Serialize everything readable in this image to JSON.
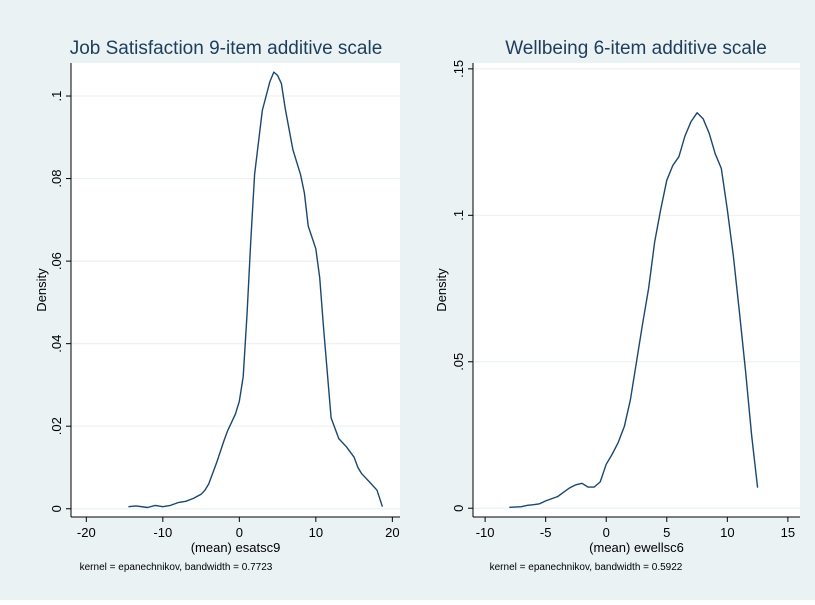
{
  "colors": {
    "outer_background": "#eaf2f3",
    "plot_background": "#ffffff",
    "grid": "#eaf2f3",
    "line": "#1a476f",
    "text": "#000000",
    "title": "#1e3d5c"
  },
  "chart_data": [
    {
      "type": "line",
      "title": "Job Satisfaction 9-item additive scale",
      "xlabel": "(mean) esatsc9",
      "ylabel": "Density",
      "note": "kernel = epanechnikov, bandwidth = 0.7723",
      "xlim": [
        -22,
        21
      ],
      "ylim": [
        -0.002,
        0.108
      ],
      "xticks": [
        -20,
        -10,
        0,
        10,
        20
      ],
      "xtick_labels": [
        "-20",
        "-10",
        "0",
        "10",
        "20"
      ],
      "yticks": [
        0,
        0.02,
        0.04,
        0.06,
        0.08,
        0.1
      ],
      "ytick_labels": [
        "0",
        ".02",
        ".04",
        ".06",
        ".08",
        ".1"
      ],
      "grid": true,
      "series": [
        {
          "x": [
            -14.5,
            -13.5,
            -12.0,
            -11.0,
            -10.0,
            -9.0,
            -8.0,
            -7.0,
            -6.0,
            -5.0,
            -4.5,
            -4.0,
            -3.0,
            -2.0,
            -1.5,
            -1.0,
            -0.5,
            0.0,
            0.5,
            1.0,
            1.5,
            2.0,
            3.0,
            4.0,
            4.5,
            5.0,
            5.5,
            6.0,
            7.0,
            8.0,
            8.5,
            9.0,
            10.0,
            10.5,
            11.0,
            12.0,
            13.0,
            14.0,
            15.0,
            15.5,
            16.0,
            16.5,
            17.0,
            18.0,
            18.7
          ],
          "y": [
            0.0005,
            0.0007,
            0.0003,
            0.0008,
            0.0005,
            0.0008,
            0.0015,
            0.0018,
            0.0025,
            0.0035,
            0.0045,
            0.006,
            0.011,
            0.0165,
            0.019,
            0.021,
            0.023,
            0.026,
            0.032,
            0.047,
            0.065,
            0.081,
            0.0965,
            0.1035,
            0.1058,
            0.105,
            0.103,
            0.097,
            0.087,
            0.081,
            0.0765,
            0.0685,
            0.063,
            0.056,
            0.044,
            0.022,
            0.017,
            0.015,
            0.0125,
            0.01,
            0.0085,
            0.0075,
            0.0065,
            0.0045,
            0.0005
          ]
        }
      ]
    },
    {
      "type": "line",
      "title": "Wellbeing 6-item additive scale",
      "xlabel": "(mean) ewellsc6",
      "ylabel": "Density",
      "note": "kernel = epanechnikov, bandwidth = 0.5922",
      "xlim": [
        -11,
        16
      ],
      "ylim": [
        -0.003,
        0.152
      ],
      "xticks": [
        -10,
        -5,
        0,
        5,
        10,
        15
      ],
      "xtick_labels": [
        "-10",
        "-5",
        "0",
        "5",
        "10",
        "15"
      ],
      "yticks": [
        0,
        0.05,
        0.1,
        0.15
      ],
      "ytick_labels": [
        "0",
        ".05",
        ".1",
        ".15"
      ],
      "grid": true,
      "series": [
        {
          "x": [
            -8.0,
            -7.0,
            -6.5,
            -6.0,
            -5.5,
            -5.0,
            -4.0,
            -3.5,
            -3.0,
            -2.5,
            -2.0,
            -1.5,
            -1.0,
            -0.5,
            0.0,
            0.5,
            1.0,
            1.5,
            2.0,
            2.5,
            3.0,
            3.5,
            4.0,
            4.5,
            5.0,
            5.5,
            6.0,
            6.5,
            7.0,
            7.5,
            8.0,
            8.5,
            9.0,
            9.5,
            10.0,
            10.5,
            11.0,
            11.5,
            12.0,
            12.5
          ],
          "y": [
            0.0003,
            0.0005,
            0.001,
            0.0012,
            0.0015,
            0.0025,
            0.004,
            0.0055,
            0.007,
            0.008,
            0.0085,
            0.0072,
            0.0072,
            0.009,
            0.015,
            0.0185,
            0.0225,
            0.028,
            0.037,
            0.05,
            0.063,
            0.075,
            0.091,
            0.102,
            0.112,
            0.117,
            0.12,
            0.127,
            0.132,
            0.135,
            0.133,
            0.128,
            0.121,
            0.116,
            0.102,
            0.086,
            0.067,
            0.047,
            0.025,
            0.007
          ]
        }
      ]
    }
  ]
}
